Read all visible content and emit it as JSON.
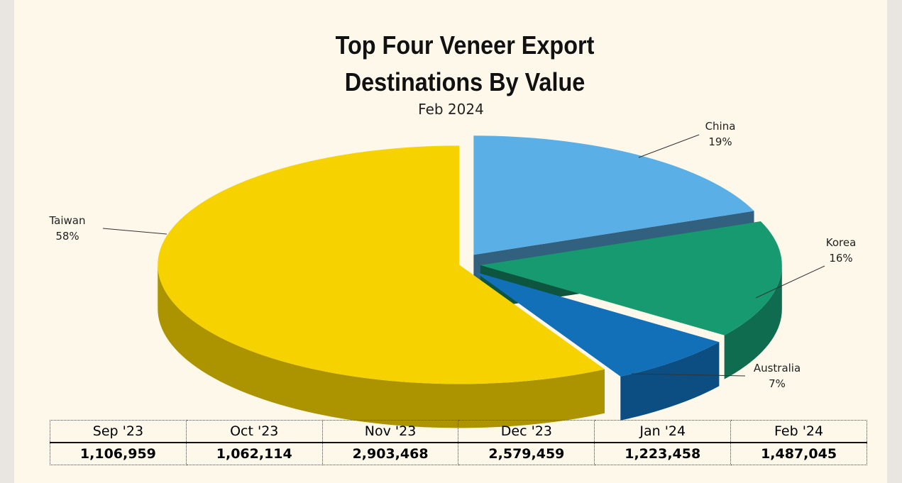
{
  "chart_data": {
    "type": "pie3d",
    "title": "Top Four Veneer Export Destinations By Value",
    "subtitle": "Feb 2024",
    "categories": [
      "Taiwan",
      "China",
      "Korea",
      "Australia"
    ],
    "values": [
      58,
      19,
      16,
      7
    ],
    "value_labels": [
      "58%",
      "19%",
      "16%",
      "7%"
    ],
    "colors": [
      "#f6d200",
      "#5aafe6",
      "#179a70",
      "#1170b8"
    ]
  },
  "table": {
    "columns": [
      "Sep '23",
      "Oct '23",
      "Nov '23",
      "Dec '23",
      "Jan '24",
      "Feb '24"
    ],
    "rows": [
      [
        "1,106,959",
        "1,062,114",
        "2,903,468",
        "2,579,459",
        "1,223,458",
        "1,487,045"
      ]
    ]
  }
}
